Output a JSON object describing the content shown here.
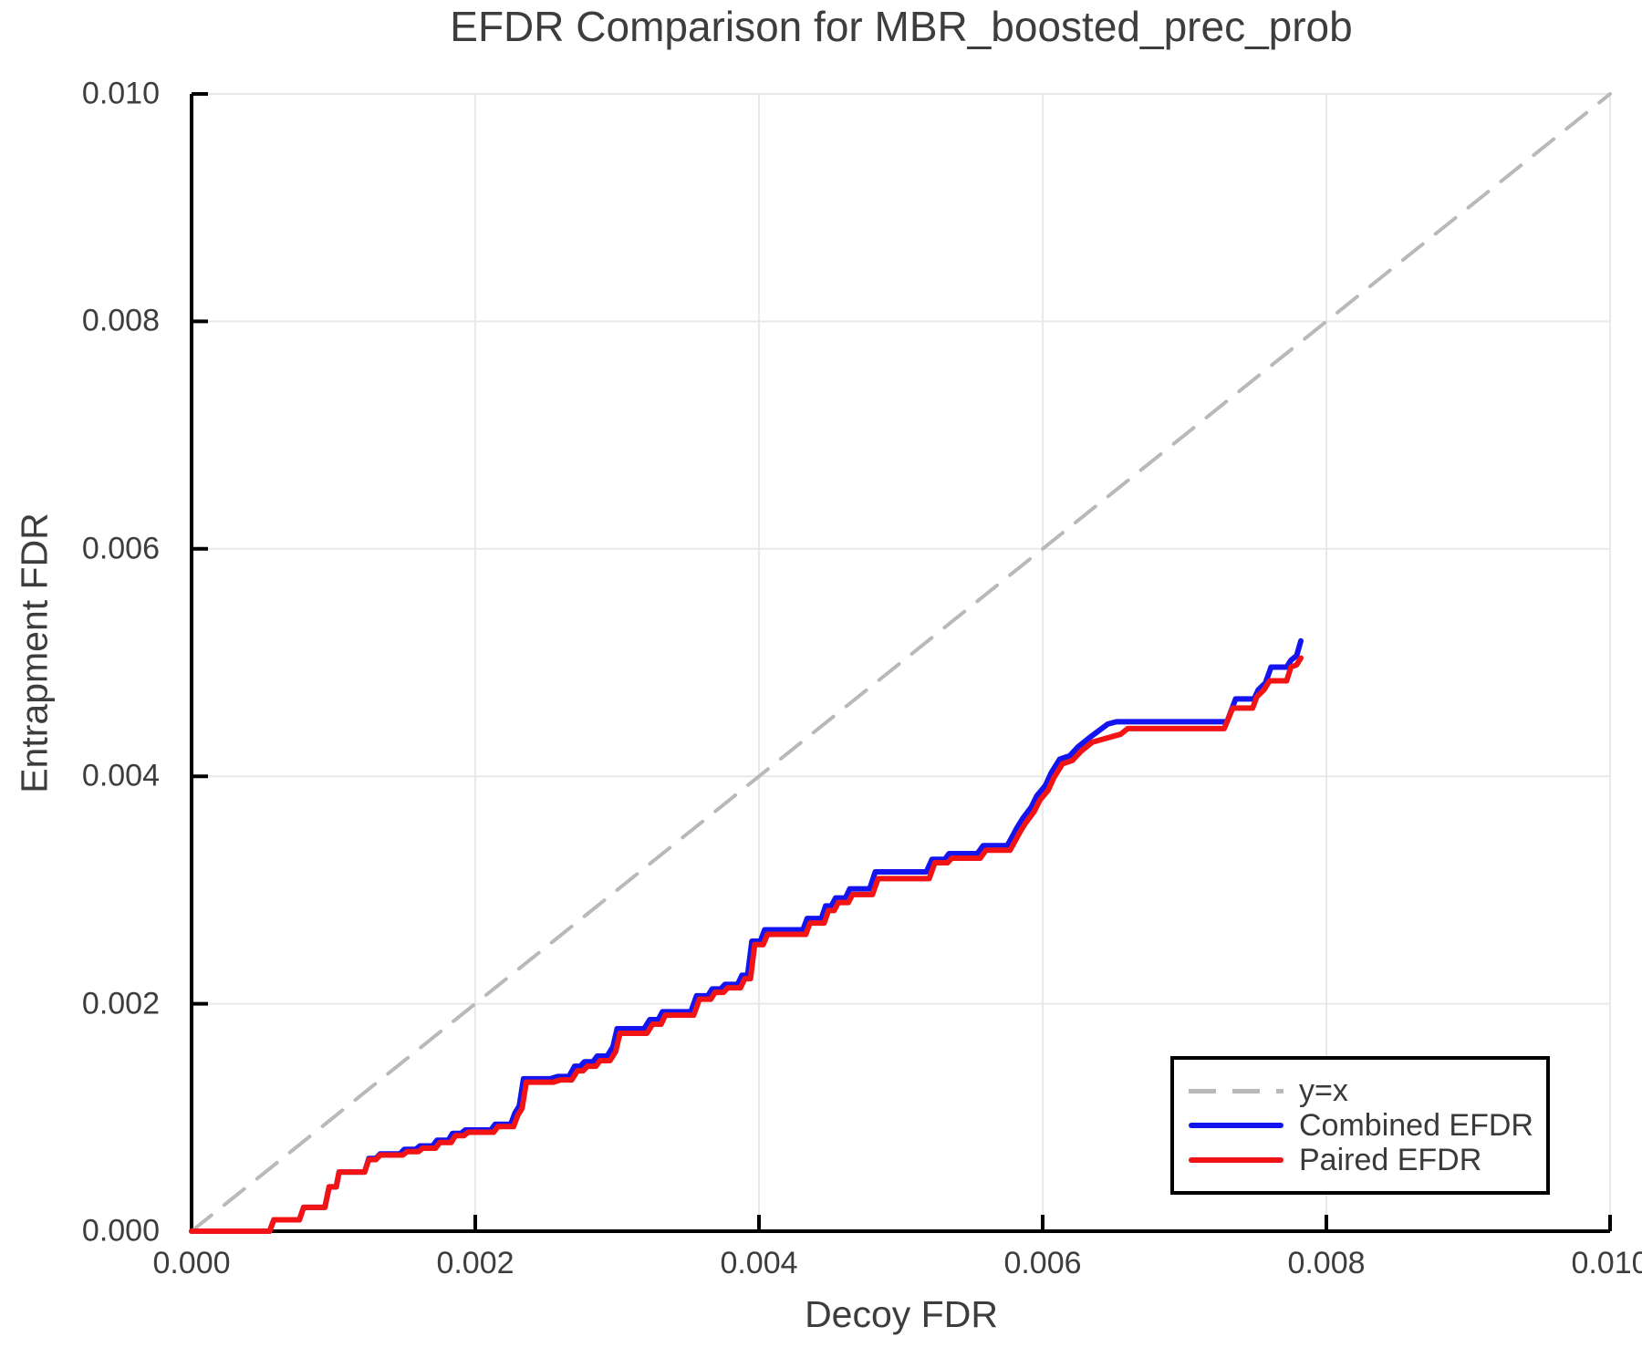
{
  "chart_data": {
    "type": "line",
    "title": "EFDR Comparison for MBR_boosted_prec_prob",
    "xlabel": "Decoy FDR",
    "ylabel": "Entrapment FDR",
    "xlim": [
      0.0,
      0.01
    ],
    "ylim": [
      0.0,
      0.01
    ],
    "x_ticks": [
      0.0,
      0.002,
      0.004,
      0.006,
      0.008,
      0.01
    ],
    "y_ticks": [
      0.0,
      0.002,
      0.004,
      0.006,
      0.008,
      0.01
    ],
    "x_tick_labels": [
      "0.000",
      "0.002",
      "0.004",
      "0.006",
      "0.008",
      "0.010"
    ],
    "y_tick_labels": [
      "0.000",
      "0.002",
      "0.004",
      "0.006",
      "0.008",
      "0.010"
    ],
    "grid": true,
    "legend_position": "lower right",
    "style": {
      "grid_color": "#e9e9e9",
      "spine_color": "#000000",
      "text_color": "#3d3d3d",
      "diagonal_dash": "28 18"
    },
    "series": [
      {
        "name": "y=x",
        "kind": "diagonal",
        "color": "#b9b9b9",
        "line_style": "dashed",
        "points": [
          [
            0.0,
            0.0
          ],
          [
            0.01,
            0.01
          ]
        ]
      },
      {
        "name": "Combined EFDR",
        "kind": "steps",
        "color": "#1414f0",
        "line_style": "solid",
        "points": [
          [
            0.0,
            0.0
          ],
          [
            0.00055,
            0.0
          ],
          [
            0.00058,
            0.0001
          ],
          [
            0.00076,
            0.0001
          ],
          [
            0.00079,
            0.00021
          ],
          [
            0.00094,
            0.00021
          ],
          [
            0.00097,
            0.00039
          ],
          [
            0.00102,
            0.00039
          ],
          [
            0.00104,
            0.00052
          ],
          [
            0.00122,
            0.00052
          ],
          [
            0.00125,
            0.00064
          ],
          [
            0.0013,
            0.00064
          ],
          [
            0.00133,
            0.00068
          ],
          [
            0.00147,
            0.00068
          ],
          [
            0.0015,
            0.00072
          ],
          [
            0.00158,
            0.00072
          ],
          [
            0.00161,
            0.00075
          ],
          [
            0.0017,
            0.00075
          ],
          [
            0.00173,
            0.0008
          ],
          [
            0.00181,
            0.0008
          ],
          [
            0.00184,
            0.00086
          ],
          [
            0.0019,
            0.00086
          ],
          [
            0.00193,
            0.00089
          ],
          [
            0.00211,
            0.00089
          ],
          [
            0.00214,
            0.00094
          ],
          [
            0.00225,
            0.00094
          ],
          [
            0.00228,
            0.00104
          ],
          [
            0.00231,
            0.0011
          ],
          [
            0.00234,
            0.00134
          ],
          [
            0.00253,
            0.00134
          ],
          [
            0.00258,
            0.00136
          ],
          [
            0.00266,
            0.00136
          ],
          [
            0.0027,
            0.00145
          ],
          [
            0.00274,
            0.00145
          ],
          [
            0.00277,
            0.00149
          ],
          [
            0.00283,
            0.00149
          ],
          [
            0.00286,
            0.00154
          ],
          [
            0.00293,
            0.00154
          ],
          [
            0.00297,
            0.00162
          ],
          [
            0.003,
            0.00178
          ],
          [
            0.00319,
            0.00178
          ],
          [
            0.00323,
            0.00186
          ],
          [
            0.00329,
            0.00186
          ],
          [
            0.00332,
            0.00193
          ],
          [
            0.00352,
            0.00193
          ],
          [
            0.00356,
            0.00207
          ],
          [
            0.00364,
            0.00207
          ],
          [
            0.00367,
            0.00213
          ],
          [
            0.00373,
            0.00213
          ],
          [
            0.00376,
            0.00217
          ],
          [
            0.00385,
            0.00217
          ],
          [
            0.00388,
            0.00225
          ],
          [
            0.00392,
            0.00225
          ],
          [
            0.00395,
            0.00255
          ],
          [
            0.00401,
            0.00255
          ],
          [
            0.00404,
            0.00265
          ],
          [
            0.00431,
            0.00265
          ],
          [
            0.00434,
            0.00275
          ],
          [
            0.00444,
            0.00275
          ],
          [
            0.00447,
            0.00286
          ],
          [
            0.00451,
            0.00286
          ],
          [
            0.00454,
            0.00293
          ],
          [
            0.00461,
            0.00293
          ],
          [
            0.00464,
            0.00301
          ],
          [
            0.00478,
            0.00301
          ],
          [
            0.00482,
            0.00316
          ],
          [
            0.00518,
            0.00316
          ],
          [
            0.00522,
            0.00327
          ],
          [
            0.00531,
            0.00327
          ],
          [
            0.00534,
            0.00332
          ],
          [
            0.00554,
            0.00332
          ],
          [
            0.00558,
            0.00339
          ],
          [
            0.00575,
            0.00339
          ],
          [
            0.00579,
            0.00348
          ],
          [
            0.00582,
            0.00355
          ],
          [
            0.00586,
            0.00363
          ],
          [
            0.00592,
            0.00373
          ],
          [
            0.00596,
            0.00383
          ],
          [
            0.00602,
            0.00392
          ],
          [
            0.00606,
            0.00403
          ],
          [
            0.00612,
            0.00415
          ],
          [
            0.00619,
            0.00418
          ],
          [
            0.00625,
            0.00426
          ],
          [
            0.00633,
            0.00434
          ],
          [
            0.00646,
            0.00446
          ],
          [
            0.00652,
            0.00448
          ],
          [
            0.0073,
            0.00448
          ],
          [
            0.00736,
            0.00468
          ],
          [
            0.00749,
            0.00468
          ],
          [
            0.00752,
            0.00476
          ],
          [
            0.00757,
            0.00482
          ],
          [
            0.00761,
            0.00496
          ],
          [
            0.00772,
            0.00496
          ],
          [
            0.00775,
            0.00502
          ],
          [
            0.00779,
            0.00506
          ],
          [
            0.00782,
            0.00519
          ]
        ]
      },
      {
        "name": "Paired EFDR",
        "kind": "steps",
        "color": "#f21414",
        "line_style": "solid",
        "points": [
          [
            0.0,
            0.0
          ],
          [
            0.00055,
            0.0
          ],
          [
            0.00058,
            0.0001
          ],
          [
            0.00076,
            0.0001
          ],
          [
            0.00079,
            0.00021
          ],
          [
            0.00094,
            0.00021
          ],
          [
            0.00097,
            0.00039
          ],
          [
            0.00102,
            0.00039
          ],
          [
            0.00104,
            0.00052
          ],
          [
            0.00122,
            0.00052
          ],
          [
            0.00125,
            0.00063
          ],
          [
            0.0013,
            0.00063
          ],
          [
            0.00133,
            0.00067
          ],
          [
            0.00149,
            0.00067
          ],
          [
            0.00152,
            0.0007
          ],
          [
            0.0016,
            0.0007
          ],
          [
            0.00163,
            0.00073
          ],
          [
            0.00172,
            0.00073
          ],
          [
            0.00175,
            0.00078
          ],
          [
            0.00183,
            0.00078
          ],
          [
            0.00186,
            0.00084
          ],
          [
            0.00192,
            0.00084
          ],
          [
            0.00195,
            0.00087
          ],
          [
            0.00213,
            0.00087
          ],
          [
            0.00216,
            0.00092
          ],
          [
            0.00227,
            0.00092
          ],
          [
            0.0023,
            0.00102
          ],
          [
            0.00233,
            0.00108
          ],
          [
            0.00236,
            0.00131
          ],
          [
            0.00255,
            0.00131
          ],
          [
            0.0026,
            0.00133
          ],
          [
            0.00268,
            0.00133
          ],
          [
            0.00272,
            0.00141
          ],
          [
            0.00276,
            0.00141
          ],
          [
            0.00279,
            0.00145
          ],
          [
            0.00285,
            0.00145
          ],
          [
            0.00288,
            0.0015
          ],
          [
            0.00295,
            0.0015
          ],
          [
            0.00299,
            0.00158
          ],
          [
            0.00302,
            0.00174
          ],
          [
            0.00321,
            0.00174
          ],
          [
            0.00325,
            0.00182
          ],
          [
            0.00331,
            0.00182
          ],
          [
            0.00334,
            0.0019
          ],
          [
            0.00354,
            0.0019
          ],
          [
            0.00358,
            0.00204
          ],
          [
            0.00366,
            0.00204
          ],
          [
            0.00369,
            0.0021
          ],
          [
            0.00375,
            0.0021
          ],
          [
            0.00378,
            0.00214
          ],
          [
            0.00387,
            0.00214
          ],
          [
            0.0039,
            0.00222
          ],
          [
            0.00394,
            0.00222
          ],
          [
            0.00397,
            0.00252
          ],
          [
            0.00403,
            0.00252
          ],
          [
            0.00406,
            0.00261
          ],
          [
            0.00433,
            0.00261
          ],
          [
            0.00436,
            0.00271
          ],
          [
            0.00446,
            0.00271
          ],
          [
            0.00449,
            0.00282
          ],
          [
            0.00453,
            0.00282
          ],
          [
            0.00456,
            0.00289
          ],
          [
            0.00463,
            0.00289
          ],
          [
            0.00466,
            0.00296
          ],
          [
            0.0048,
            0.00296
          ],
          [
            0.00484,
            0.0031
          ],
          [
            0.0052,
            0.0031
          ],
          [
            0.00524,
            0.00324
          ],
          [
            0.00533,
            0.00324
          ],
          [
            0.00536,
            0.00328
          ],
          [
            0.00556,
            0.00328
          ],
          [
            0.0056,
            0.00335
          ],
          [
            0.00577,
            0.00335
          ],
          [
            0.00581,
            0.00344
          ],
          [
            0.00584,
            0.00351
          ],
          [
            0.00588,
            0.00359
          ],
          [
            0.00594,
            0.00369
          ],
          [
            0.00598,
            0.00379
          ],
          [
            0.00604,
            0.00388
          ],
          [
            0.00608,
            0.00399
          ],
          [
            0.00614,
            0.00411
          ],
          [
            0.00621,
            0.00414
          ],
          [
            0.00627,
            0.00422
          ],
          [
            0.00635,
            0.0043
          ],
          [
            0.00655,
            0.00437
          ],
          [
            0.0066,
            0.00442
          ],
          [
            0.00728,
            0.00442
          ],
          [
            0.00734,
            0.0046
          ],
          [
            0.00748,
            0.0046
          ],
          [
            0.00751,
            0.0047
          ],
          [
            0.00756,
            0.00476
          ],
          [
            0.0076,
            0.00484
          ],
          [
            0.00772,
            0.00484
          ],
          [
            0.00775,
            0.00496
          ],
          [
            0.00779,
            0.00498
          ],
          [
            0.00782,
            0.00504
          ]
        ]
      }
    ]
  }
}
